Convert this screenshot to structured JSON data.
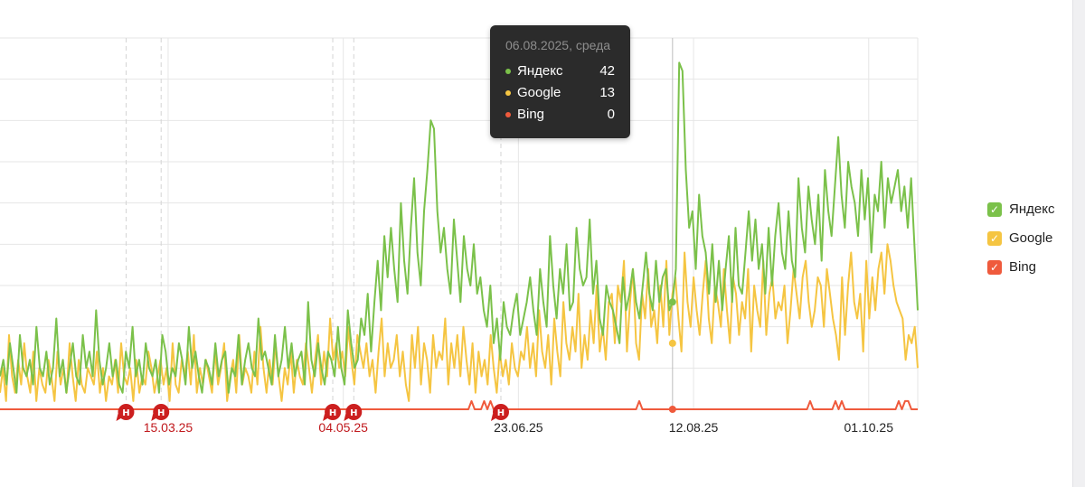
{
  "tooltip": {
    "date": "06.08.2025, среда",
    "rows": [
      {
        "name": "Яндекс",
        "value": "42",
        "color": "#7bc14a"
      },
      {
        "name": "Google",
        "value": "13",
        "color": "#f5c542"
      },
      {
        "name": "Bing",
        "value": "0",
        "color": "#ef5a3c"
      }
    ]
  },
  "legend": [
    {
      "label": "Яндекс",
      "color": "#7bc14a",
      "checked": true,
      "check": "✓"
    },
    {
      "label": "Google",
      "color": "#f5c542",
      "checked": true,
      "check": "✓"
    },
    {
      "label": "Bing",
      "color": "#ef5a3c",
      "checked": true,
      "check": "✓"
    }
  ],
  "annotation_marker": {
    "letter": "Н",
    "color": "#cc1f1f"
  },
  "chart_data": {
    "type": "line",
    "title": "",
    "xlabel": "",
    "ylabel": "",
    "x_range": [
      "2025-01-26",
      "2025-10-15"
    ],
    "ylim": [
      0,
      45
    ],
    "grid": true,
    "legend_position": "right",
    "x_ticks": [
      {
        "label": "15.03.25",
        "date": "2025-03-15",
        "annotated": true
      },
      {
        "label": "04.05.25",
        "date": "2025-05-04",
        "annotated": true
      },
      {
        "label": "23.06.25",
        "date": "2025-06-23",
        "annotated": false
      },
      {
        "label": "12.08.25",
        "date": "2025-08-12",
        "annotated": false
      },
      {
        "label": "01.10.25",
        "date": "2025-10-01",
        "annotated": false
      }
    ],
    "annotation_dates": [
      "2025-03-03",
      "2025-03-13",
      "2025-05-01",
      "2025-05-07",
      "2025-06-18"
    ],
    "highlight_date": "2025-08-06",
    "series": [
      {
        "name": "Яндекс",
        "color": "#7bc14a",
        "values": [
          4,
          6,
          3,
          8,
          5,
          2,
          9,
          5,
          4,
          6,
          3,
          10,
          5,
          4,
          7,
          3,
          5,
          11,
          4,
          6,
          2,
          5,
          8,
          4,
          3,
          9,
          5,
          7,
          4,
          12,
          6,
          3,
          5,
          8,
          4,
          6,
          3,
          2,
          7,
          5,
          10,
          4,
          6,
          3,
          8,
          5,
          4,
          6,
          2,
          9,
          7,
          3,
          5,
          4,
          8,
          6,
          3,
          10,
          5,
          7,
          4,
          2,
          6,
          5,
          3,
          8,
          4,
          6,
          7,
          2,
          5,
          4,
          9,
          3,
          6,
          8,
          5,
          4,
          11,
          6,
          7,
          5,
          3,
          9,
          4,
          6,
          10,
          5,
          8,
          4,
          6,
          7,
          3,
          13,
          6,
          4,
          8,
          5,
          3,
          7,
          6,
          4,
          10,
          5,
          3,
          12,
          8,
          5,
          6,
          11,
          9,
          14,
          7,
          13,
          18,
          12,
          21,
          16,
          22,
          17,
          13,
          25,
          18,
          14,
          22,
          28,
          19,
          15,
          24,
          29,
          35,
          34,
          24,
          19,
          22,
          17,
          14,
          23,
          18,
          13,
          21,
          17,
          15,
          20,
          14,
          16,
          12,
          10,
          15,
          8,
          11,
          6,
          13,
          10,
          9,
          12,
          14,
          9,
          11,
          13,
          16,
          12,
          9,
          17,
          13,
          10,
          21,
          15,
          11,
          17,
          14,
          20,
          12,
          13,
          22,
          17,
          15,
          16,
          23,
          14,
          18,
          11,
          9,
          15,
          13,
          12,
          10,
          8,
          16,
          12,
          14,
          17,
          13,
          11,
          15,
          19,
          14,
          12,
          18,
          13,
          16,
          17,
          12,
          13,
          17,
          42,
          41,
          29,
          22,
          24,
          17,
          26,
          21,
          19,
          14,
          20,
          13,
          18,
          12,
          17,
          21,
          13,
          22,
          15,
          14,
          19,
          24,
          18,
          23,
          17,
          20,
          14,
          22,
          15,
          21,
          25,
          19,
          17,
          24,
          18,
          16,
          28,
          22,
          19,
          27,
          23,
          20,
          26,
          18,
          29,
          24,
          21,
          27,
          33,
          26,
          22,
          30,
          27,
          25,
          21,
          29,
          23,
          28,
          19,
          26,
          24,
          30,
          22,
          28,
          25,
          27,
          29,
          24,
          27,
          22,
          28,
          20,
          12
        ]
      },
      {
        "name": "Google",
        "color": "#f5c542",
        "values": [
          2,
          5,
          1,
          9,
          4,
          2,
          6,
          3,
          8,
          4,
          2,
          7,
          1,
          5,
          3,
          2,
          6,
          4,
          1,
          7,
          3,
          5,
          2,
          8,
          4,
          1,
          6,
          3,
          2,
          5,
          4,
          3,
          7,
          2,
          5,
          1,
          4,
          3,
          6,
          2,
          8,
          4,
          3,
          5,
          1,
          6,
          2,
          4,
          3,
          7,
          5,
          2,
          4,
          6,
          3,
          5,
          1,
          8,
          3,
          2,
          6,
          4,
          7,
          3,
          9,
          2,
          5,
          3,
          6,
          4,
          2,
          7,
          3,
          5,
          8,
          1,
          4,
          6,
          2,
          9,
          3,
          5,
          4,
          2,
          7,
          3,
          10,
          5,
          2,
          6,
          3,
          8,
          4,
          1,
          5,
          3,
          7,
          2,
          6,
          4,
          3,
          8,
          5,
          2,
          6,
          9,
          3,
          7,
          4,
          11,
          6,
          8,
          5,
          7,
          4,
          10,
          6,
          3,
          9,
          7,
          5,
          8,
          4,
          6,
          2,
          7,
          11,
          4,
          8,
          5,
          6,
          9,
          4,
          7,
          3,
          1,
          9,
          5,
          10,
          3,
          8,
          6,
          2,
          9,
          5,
          7,
          6,
          11,
          3,
          8,
          5,
          9,
          4,
          10,
          6,
          3,
          8,
          2,
          7,
          4,
          6,
          3,
          9,
          5,
          2,
          7,
          4,
          6,
          3,
          8,
          5,
          4,
          7,
          6,
          10,
          5,
          8,
          4,
          12,
          7,
          5,
          9,
          3,
          11,
          7,
          4,
          13,
          8,
          6,
          10,
          7,
          14,
          5,
          9,
          6,
          12,
          8,
          15,
          7,
          10,
          6,
          13,
          14,
          8,
          15,
          13,
          18,
          7,
          13,
          17,
          8,
          6,
          14,
          11,
          17,
          10,
          12,
          8,
          15,
          10,
          18,
          9,
          14,
          16,
          11,
          7,
          19,
          13,
          10,
          16,
          12,
          9,
          14,
          18,
          11,
          8,
          15,
          13,
          10,
          17,
          12,
          8,
          16,
          14,
          9,
          13,
          11,
          17,
          7,
          15,
          12,
          10,
          18,
          9,
          14,
          16,
          11,
          13,
          12,
          15,
          8,
          12,
          17,
          14,
          11,
          16,
          18,
          13,
          10,
          12,
          16,
          15,
          10,
          17,
          14,
          11,
          9,
          6,
          16,
          9,
          15,
          19,
          13,
          11,
          14,
          7,
          18,
          11,
          16,
          12,
          17,
          19,
          14,
          20,
          18,
          15,
          13,
          12,
          11,
          6,
          9,
          8,
          10,
          5
        ]
      },
      {
        "name": "Bing",
        "color": "#ef5a3c",
        "values": [
          0,
          0,
          0,
          0,
          0,
          0,
          0,
          0,
          0,
          0,
          0,
          0,
          0,
          0,
          0,
          0,
          0,
          0,
          0,
          0,
          0,
          0,
          0,
          0,
          0,
          0,
          0,
          0,
          0,
          0,
          0,
          0,
          0,
          0,
          0,
          0,
          0,
          0,
          0,
          0,
          0,
          0,
          0,
          0,
          0,
          0,
          0,
          0,
          0,
          0,
          0,
          0,
          0,
          0,
          0,
          0,
          0,
          0,
          0,
          0,
          0,
          0,
          0,
          0,
          0,
          0,
          0,
          0,
          0,
          0,
          0,
          0,
          0,
          0,
          0,
          0,
          0,
          0,
          0,
          0,
          0,
          0,
          0,
          0,
          0,
          0,
          0,
          0,
          0,
          0,
          0,
          0,
          0,
          0,
          0,
          0,
          0,
          0,
          0,
          0,
          0,
          0,
          0,
          0,
          0,
          0,
          0,
          0,
          0,
          0,
          0,
          0,
          0,
          0,
          0,
          0,
          0,
          0,
          0,
          0,
          0,
          0,
          0,
          0,
          0,
          0,
          0,
          0,
          0,
          0,
          0,
          0,
          0,
          0,
          0,
          0,
          0,
          0,
          0,
          0,
          0,
          0,
          0,
          0,
          0,
          0,
          0,
          0,
          0,
          1,
          0,
          0,
          0,
          1,
          0,
          1,
          0,
          0,
          0,
          0,
          0,
          0,
          0,
          0,
          0,
          0,
          0,
          0,
          0,
          0,
          0,
          0,
          0,
          0,
          0,
          0,
          0,
          0,
          0,
          0,
          0,
          0,
          0,
          0,
          0,
          0,
          0,
          0,
          0,
          0,
          0,
          0,
          0,
          0,
          0,
          0,
          0,
          0,
          0,
          0,
          0,
          0,
          1,
          0,
          0,
          0,
          0,
          0,
          0,
          0,
          0,
          0,
          0,
          0,
          0,
          0,
          0,
          0,
          0,
          0,
          0,
          0,
          0,
          0,
          0,
          0,
          0,
          0,
          0,
          0,
          0,
          0,
          0,
          0,
          0,
          0,
          0,
          0,
          0,
          0,
          0,
          0,
          0,
          0,
          0,
          0,
          0,
          0,
          0,
          0,
          0,
          0,
          0,
          0,
          0,
          0,
          1,
          0,
          0,
          0,
          0,
          0,
          0,
          0,
          1,
          0,
          1,
          0,
          0,
          0,
          0,
          0,
          0,
          0,
          0,
          0,
          0,
          0,
          0,
          0,
          0,
          0,
          0,
          0,
          1,
          0,
          1,
          1,
          0,
          0,
          0
        ]
      }
    ]
  }
}
